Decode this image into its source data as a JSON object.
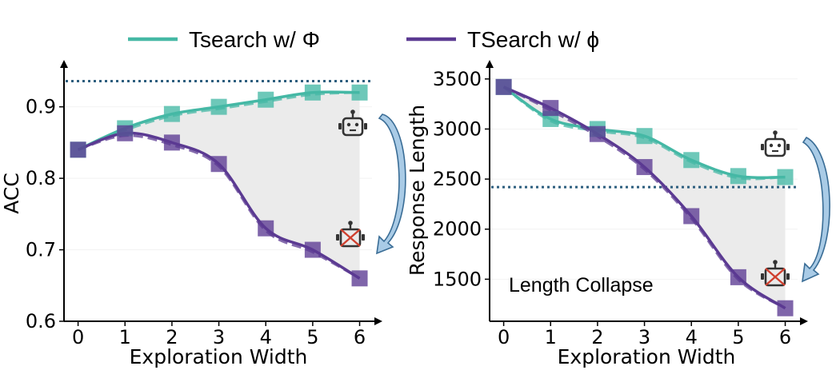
{
  "legend": [
    {
      "label": "Tsearch w/ Φ",
      "color": "#45b8a5"
    },
    {
      "label": "TSearch w/ ϕ",
      "color": "#5b3a92"
    }
  ],
  "colors": {
    "teal": "#45b8a5",
    "purple": "#5b3a92",
    "reference": "#2e5f7f",
    "shade": "#ebebeb",
    "arrow": "#a9cbe6"
  },
  "chart_data": [
    {
      "type": "line",
      "xlabel": "Exploration Width",
      "ylabel": "ACC",
      "x": [
        0,
        1,
        2,
        3,
        4,
        5,
        6
      ],
      "xlim": [
        -0.3,
        6.4
      ],
      "ylim": [
        0.6,
        0.96
      ],
      "yticks": [
        0.6,
        0.7,
        0.8,
        0.9
      ],
      "ytick_labels": [
        "0.6",
        "0.7",
        "0.8",
        "0.9"
      ],
      "xtick_labels": [
        "0",
        "1",
        "2",
        "3",
        "4",
        "5",
        "6"
      ],
      "reference_line": 0.936,
      "series": [
        {
          "name": "Tsearch w/ Φ",
          "color": "#45b8a5",
          "values": [
            0.84,
            0.87,
            0.89,
            0.9,
            0.91,
            0.92,
            0.92
          ]
        },
        {
          "name": "TSearch w/ ϕ",
          "color": "#5b3a92",
          "values": [
            0.84,
            0.863,
            0.85,
            0.82,
            0.73,
            0.7,
            0.66
          ]
        }
      ],
      "shaded_region": "between series",
      "icons": [
        "robot-icon",
        "broken-robot-icon"
      ]
    },
    {
      "type": "line",
      "xlabel": "Exploration Width",
      "ylabel": "Response Length",
      "x": [
        0,
        1,
        2,
        3,
        4,
        5,
        6
      ],
      "xlim": [
        -0.3,
        6.4
      ],
      "ylim": [
        1080,
        3650
      ],
      "yticks": [
        1500,
        2000,
        2500,
        3000,
        3500
      ],
      "ytick_labels": [
        "1500",
        "2000",
        "2500",
        "3000",
        "3500"
      ],
      "xtick_labels": [
        "0",
        "1",
        "2",
        "3",
        "4",
        "5",
        "6"
      ],
      "reference_line": 2420,
      "annotation": "Length Collapse",
      "series": [
        {
          "name": "Tsearch w/ Φ",
          "color": "#45b8a5",
          "values": [
            3420,
            3100,
            3000,
            2930,
            2690,
            2530,
            2520
          ]
        },
        {
          "name": "TSearch w/ ϕ",
          "color": "#5b3a92",
          "values": [
            3420,
            3210,
            2950,
            2620,
            2130,
            1520,
            1210
          ]
        }
      ],
      "shaded_region": "between series",
      "icons": [
        "robot-icon",
        "broken-robot-icon"
      ]
    }
  ]
}
